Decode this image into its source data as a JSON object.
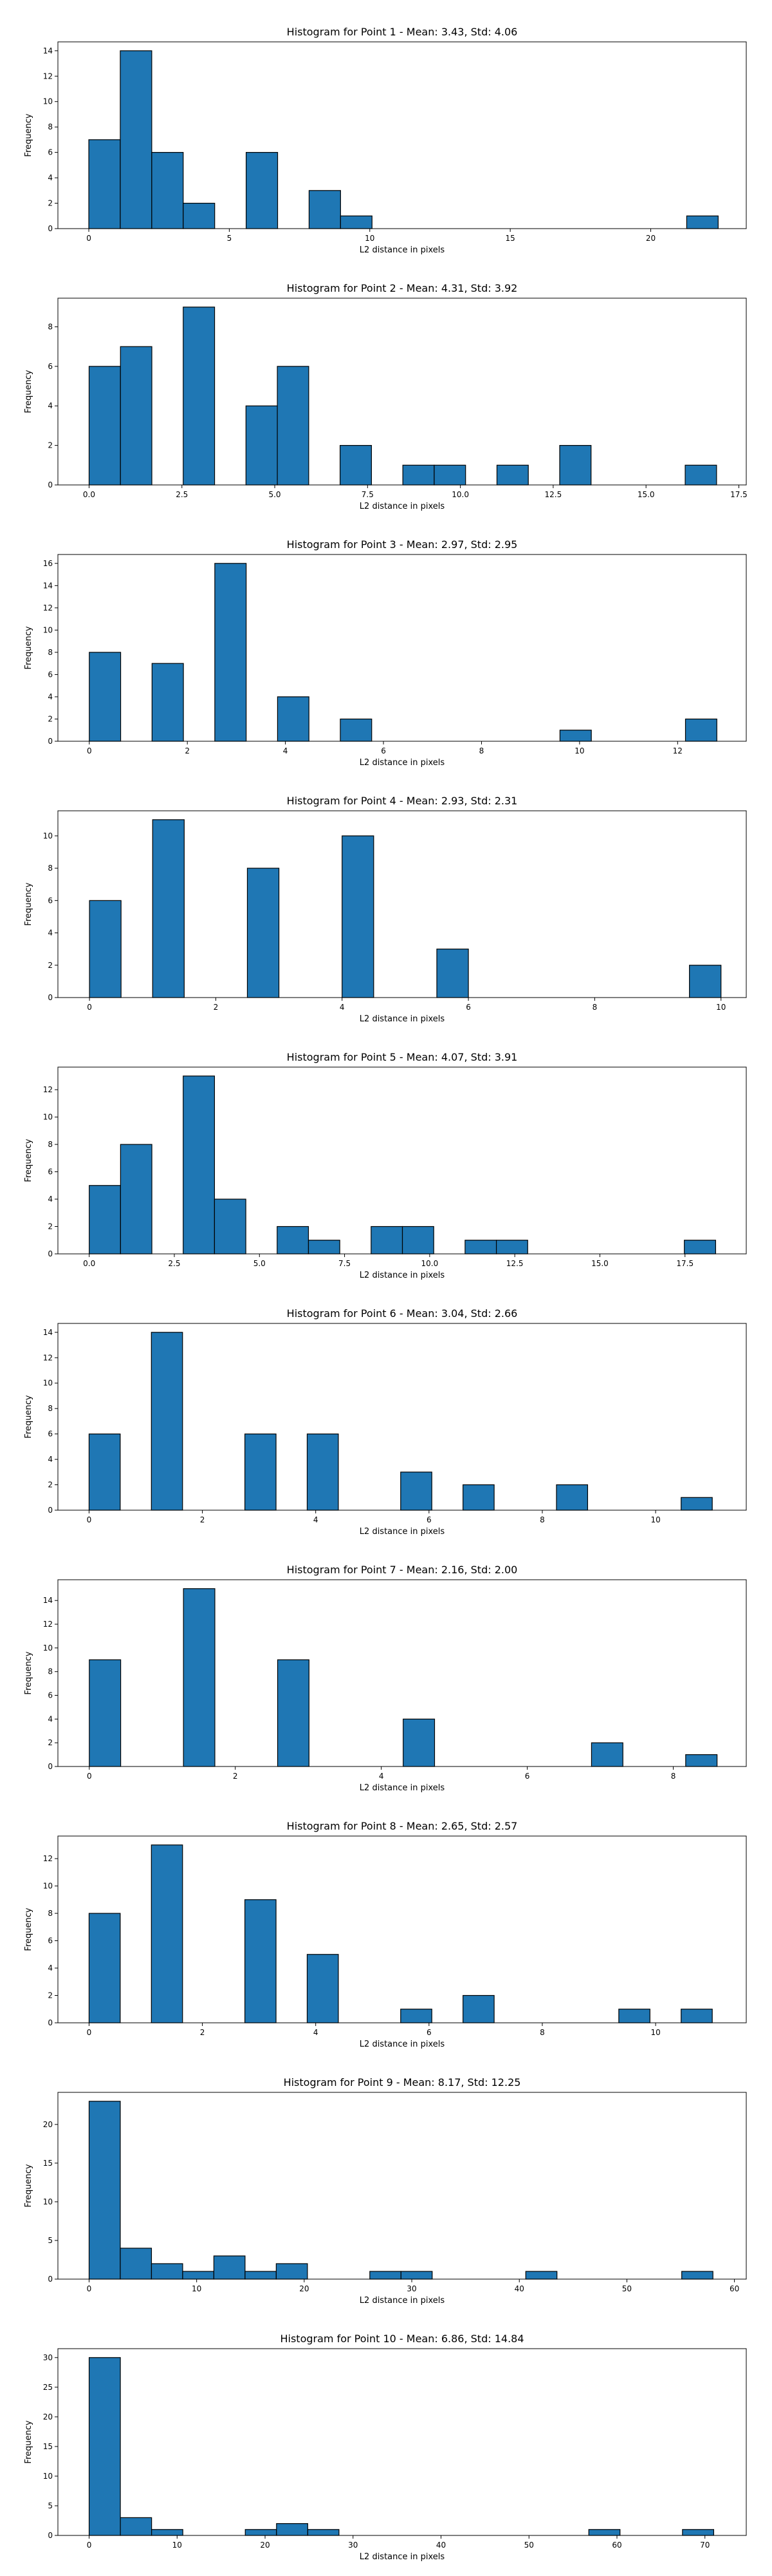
{
  "chart_data": [
    {
      "type": "bar",
      "title": "Histogram for Point 1 - Mean: 3.43, Std: 4.06",
      "xlabel": "L2 distance in pixels",
      "ylabel": "Frequency",
      "xlim": [
        -1.1,
        23.4
      ],
      "ylim": [
        0,
        14.7
      ],
      "xticks": [
        0,
        5,
        10,
        15,
        20
      ],
      "xtick_labels": [
        "0",
        "5",
        "10",
        "15",
        "20"
      ],
      "yticks": [
        0,
        2,
        4,
        6,
        8,
        10,
        12,
        14
      ],
      "ytick_labels": [
        "0",
        "2",
        "4",
        "6",
        "8",
        "10",
        "12",
        "14"
      ],
      "bins": [
        [
          0.0,
          1.12,
          7
        ],
        [
          1.12,
          2.24,
          14
        ],
        [
          2.24,
          3.36,
          6
        ],
        [
          3.36,
          4.48,
          2
        ],
        [
          5.6,
          6.72,
          6
        ],
        [
          7.84,
          8.96,
          3
        ],
        [
          8.96,
          10.08,
          1
        ],
        [
          21.28,
          22.4,
          1
        ]
      ]
    },
    {
      "type": "bar",
      "title": "Histogram for Point 2 - Mean: 4.31, Std: 3.92",
      "xlabel": "L2 distance in pixels",
      "ylabel": "Frequency",
      "xlim": [
        -0.84,
        17.7
      ],
      "ylim": [
        0,
        9.45
      ],
      "xticks": [
        0,
        2.5,
        5,
        7.5,
        10,
        12.5,
        15,
        17.5
      ],
      "xtick_labels": [
        "0.0",
        "2.5",
        "5.0",
        "7.5",
        "10.0",
        "12.5",
        "15.0",
        "17.5"
      ],
      "yticks": [
        0,
        2,
        4,
        6,
        8
      ],
      "ytick_labels": [
        "0",
        "2",
        "4",
        "6",
        "8"
      ],
      "bins": [
        [
          0.0,
          0.845,
          6
        ],
        [
          0.845,
          1.69,
          7
        ],
        [
          2.535,
          3.38,
          9
        ],
        [
          4.225,
          5.07,
          4
        ],
        [
          5.07,
          5.915,
          6
        ],
        [
          6.76,
          7.605,
          2
        ],
        [
          8.45,
          9.295,
          1
        ],
        [
          9.295,
          10.14,
          1
        ],
        [
          10.985,
          11.83,
          1
        ],
        [
          12.675,
          13.52,
          2
        ],
        [
          16.055,
          16.9,
          1
        ]
      ]
    },
    {
      "type": "bar",
      "title": "Histogram for Point 3 - Mean: 2.97, Std: 2.95",
      "xlabel": "L2 distance in pixels",
      "ylabel": "Frequency",
      "xlim": [
        -0.64,
        13.4
      ],
      "ylim": [
        0,
        16.8
      ],
      "xticks": [
        0,
        2,
        4,
        6,
        8,
        10,
        12
      ],
      "xtick_labels": [
        "0",
        "2",
        "4",
        "6",
        "8",
        "10",
        "12"
      ],
      "yticks": [
        0,
        2,
        4,
        6,
        8,
        10,
        12,
        14,
        16
      ],
      "ytick_labels": [
        "0",
        "2",
        "4",
        "6",
        "8",
        "10",
        "12",
        "14",
        "16"
      ],
      "bins": [
        [
          0.0,
          0.64,
          8
        ],
        [
          1.28,
          1.92,
          7
        ],
        [
          2.56,
          3.2,
          16
        ],
        [
          3.84,
          4.48,
          4
        ],
        [
          5.12,
          5.76,
          2
        ],
        [
          9.6,
          10.24,
          1
        ],
        [
          12.16,
          12.8,
          2
        ]
      ]
    },
    {
      "type": "bar",
      "title": "Histogram for Point 4 - Mean: 2.93, Std: 2.31",
      "xlabel": "L2 distance in pixels",
      "ylabel": "Frequency",
      "xlim": [
        -0.5,
        10.4
      ],
      "ylim": [
        0,
        11.55
      ],
      "xticks": [
        0,
        2,
        4,
        6,
        8,
        10
      ],
      "xtick_labels": [
        "0",
        "2",
        "4",
        "6",
        "8",
        "10"
      ],
      "yticks": [
        0,
        2,
        4,
        6,
        8,
        10
      ],
      "ytick_labels": [
        "0",
        "2",
        "4",
        "6",
        "8",
        "10"
      ],
      "bins": [
        [
          0.0,
          0.5,
          6
        ],
        [
          1.0,
          1.5,
          11
        ],
        [
          2.5,
          3.0,
          8
        ],
        [
          4.0,
          4.5,
          10
        ],
        [
          5.5,
          6.0,
          3
        ],
        [
          9.5,
          10.0,
          2
        ]
      ]
    },
    {
      "type": "bar",
      "title": "Histogram for Point 5 - Mean: 4.07, Std: 3.91",
      "xlabel": "L2 distance in pixels",
      "ylabel": "Frequency",
      "xlim": [
        -0.92,
        19.3
      ],
      "ylim": [
        0,
        13.65
      ],
      "xticks": [
        0,
        2.5,
        5,
        7.5,
        10,
        12.5,
        15,
        17.5
      ],
      "xtick_labels": [
        "0.0",
        "2.5",
        "5.0",
        "7.5",
        "10.0",
        "12.5",
        "15.0",
        "17.5"
      ],
      "yticks": [
        0,
        2,
        4,
        6,
        8,
        10,
        12
      ],
      "ytick_labels": [
        "0",
        "2",
        "4",
        "6",
        "8",
        "10",
        "12"
      ],
      "bins": [
        [
          0.0,
          0.92,
          5
        ],
        [
          0.92,
          1.84,
          8
        ],
        [
          2.76,
          3.68,
          13
        ],
        [
          3.68,
          4.6,
          4
        ],
        [
          5.52,
          6.44,
          2
        ],
        [
          6.44,
          7.36,
          1
        ],
        [
          8.28,
          9.2,
          2
        ],
        [
          9.2,
          10.12,
          2
        ],
        [
          11.04,
          11.96,
          1
        ],
        [
          11.96,
          12.88,
          1
        ],
        [
          17.48,
          18.4,
          1
        ]
      ]
    },
    {
      "type": "bar",
      "title": "Histogram for Point 6 - Mean: 3.04, Std: 2.66",
      "xlabel": "L2 distance in pixels",
      "ylabel": "Frequency",
      "xlim": [
        -0.55,
        11.6
      ],
      "ylim": [
        0,
        14.7
      ],
      "xticks": [
        0,
        2,
        4,
        6,
        8,
        10
      ],
      "xtick_labels": [
        "0",
        "2",
        "4",
        "6",
        "8",
        "10"
      ],
      "yticks": [
        0,
        2,
        4,
        6,
        8,
        10,
        12,
        14
      ],
      "ytick_labels": [
        "0",
        "2",
        "4",
        "6",
        "8",
        "10",
        "12",
        "14"
      ],
      "bins": [
        [
          0.0,
          0.55,
          6
        ],
        [
          1.1,
          1.65,
          14
        ],
        [
          2.75,
          3.3,
          6
        ],
        [
          3.85,
          4.4,
          6
        ],
        [
          5.5,
          6.05,
          3
        ],
        [
          6.6,
          7.15,
          2
        ],
        [
          8.25,
          8.8,
          2
        ],
        [
          10.45,
          11.0,
          1
        ]
      ]
    },
    {
      "type": "bar",
      "title": "Histogram for Point 7 - Mean: 2.16, Std: 2.00",
      "xlabel": "L2 distance in pixels",
      "ylabel": "Frequency",
      "xlim": [
        -0.43,
        9.0
      ],
      "ylim": [
        0,
        15.75
      ],
      "xticks": [
        0,
        2,
        4,
        6,
        8
      ],
      "xtick_labels": [
        "0",
        "2",
        "4",
        "6",
        "8"
      ],
      "yticks": [
        0,
        2,
        4,
        6,
        8,
        10,
        12,
        14
      ],
      "ytick_labels": [
        "0",
        "2",
        "4",
        "6",
        "8",
        "10",
        "12",
        "14"
      ],
      "bins": [
        [
          0.0,
          0.43,
          9
        ],
        [
          1.29,
          1.72,
          15
        ],
        [
          2.58,
          3.01,
          9
        ],
        [
          4.3,
          4.73,
          4
        ],
        [
          6.88,
          7.31,
          2
        ],
        [
          8.17,
          8.6,
          1
        ]
      ]
    },
    {
      "type": "bar",
      "title": "Histogram for Point 8 - Mean: 2.65, Std: 2.57",
      "xlabel": "L2 distance in pixels",
      "ylabel": "Frequency",
      "xlim": [
        -0.55,
        11.6
      ],
      "ylim": [
        0,
        13.65
      ],
      "xticks": [
        0,
        2,
        4,
        6,
        8,
        10
      ],
      "xtick_labels": [
        "0",
        "2",
        "4",
        "6",
        "8",
        "10"
      ],
      "yticks": [
        0,
        2,
        4,
        6,
        8,
        10,
        12
      ],
      "ytick_labels": [
        "0",
        "2",
        "4",
        "6",
        "8",
        "10",
        "12"
      ],
      "bins": [
        [
          0.0,
          0.55,
          8
        ],
        [
          1.1,
          1.65,
          13
        ],
        [
          2.75,
          3.3,
          9
        ],
        [
          3.85,
          4.4,
          5
        ],
        [
          5.5,
          6.05,
          1
        ],
        [
          6.6,
          7.15,
          2
        ],
        [
          9.35,
          9.9,
          1
        ],
        [
          10.45,
          11.0,
          1
        ]
      ]
    },
    {
      "type": "bar",
      "title": "Histogram for Point 9 - Mean: 8.17, Std: 12.25",
      "xlabel": "L2 distance in pixels",
      "ylabel": "Frequency",
      "xlim": [
        -2.9,
        61.1
      ],
      "ylim": [
        0,
        24.15
      ],
      "xticks": [
        0,
        10,
        20,
        30,
        40,
        50,
        60
      ],
      "xtick_labels": [
        "0",
        "10",
        "20",
        "30",
        "40",
        "50",
        "60"
      ],
      "yticks": [
        0,
        5,
        10,
        15,
        20
      ],
      "ytick_labels": [
        "0",
        "5",
        "10",
        "15",
        "20"
      ],
      "bins": [
        [
          0.0,
          2.9,
          23
        ],
        [
          2.9,
          5.8,
          4
        ],
        [
          5.8,
          8.7,
          2
        ],
        [
          8.7,
          11.6,
          1
        ],
        [
          11.6,
          14.5,
          3
        ],
        [
          14.5,
          17.4,
          1
        ],
        [
          17.4,
          20.3,
          2
        ],
        [
          26.1,
          29.0,
          1
        ],
        [
          29.0,
          31.9,
          1
        ],
        [
          40.6,
          43.5,
          1
        ],
        [
          55.1,
          58.0,
          1
        ]
      ]
    },
    {
      "type": "bar",
      "title": "Histogram for Point 10 - Mean: 6.86, Std: 14.84",
      "xlabel": "L2 distance in pixels",
      "ylabel": "Frequency",
      "xlim": [
        -3.55,
        74.7
      ],
      "ylim": [
        0,
        31.5
      ],
      "xticks": [
        0,
        10,
        20,
        30,
        40,
        50,
        60,
        70
      ],
      "xtick_labels": [
        "0",
        "10",
        "20",
        "30",
        "40",
        "50",
        "60",
        "70"
      ],
      "yticks": [
        0,
        5,
        10,
        15,
        20,
        25,
        30
      ],
      "ytick_labels": [
        "0",
        "5",
        "10",
        "15",
        "20",
        "25",
        "30"
      ],
      "bins": [
        [
          0.0,
          3.55,
          30
        ],
        [
          3.55,
          7.1,
          3
        ],
        [
          7.1,
          10.65,
          1
        ],
        [
          17.75,
          21.3,
          1
        ],
        [
          21.3,
          24.85,
          2
        ],
        [
          24.85,
          28.4,
          1
        ],
        [
          56.8,
          60.35,
          1
        ],
        [
          67.45,
          71.0,
          1
        ]
      ]
    }
  ],
  "colors": {
    "bar_fill": "#1f77b4",
    "bar_edge": "#000000",
    "axes": "#000000"
  }
}
